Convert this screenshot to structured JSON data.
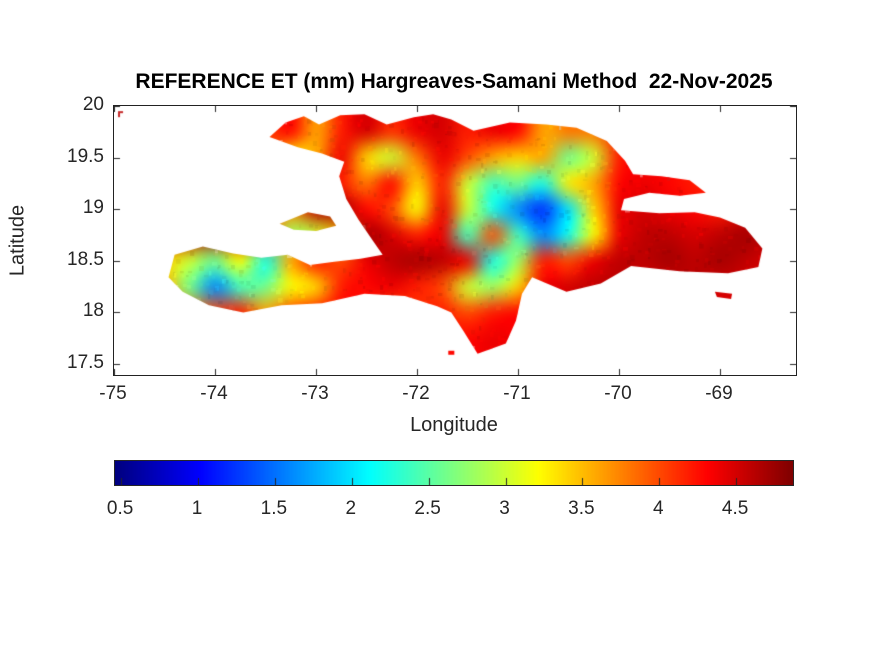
{
  "figure": {
    "title": "REFERENCE ET (mm) Hargreaves-Samani Method  22-Nov-2025",
    "background": "#ffffff",
    "text_color": "#262626",
    "axis_color": "#222222"
  },
  "axes": {
    "xlabel": "Longitude",
    "ylabel": "Latitude",
    "xlim": [
      -75,
      -68.247
    ],
    "ylim": [
      17.394,
      20
    ],
    "xticks": [
      -75,
      -74,
      -73,
      -72,
      -71,
      -70,
      -69
    ],
    "xtick_labels": [
      "-75",
      "-74",
      "-73",
      "-72",
      "-71",
      "-70",
      "-69"
    ],
    "yticks": [
      20,
      19.5,
      19,
      18.5,
      18,
      17.5
    ],
    "ytick_labels": [
      "20",
      "19.5",
      "19",
      "18.5",
      "18",
      "17.5"
    ],
    "box": true,
    "tick_dir": "in"
  },
  "colorbar": {
    "orientation": "horizontal",
    "ticks": [
      0.5,
      1,
      1.5,
      2,
      2.5,
      3,
      3.5,
      4,
      4.5
    ],
    "tick_labels": [
      "0.5",
      "1",
      "1.5",
      "2",
      "2.5",
      "3",
      "3.5",
      "4",
      "4.5"
    ],
    "limits": [
      0.46,
      4.87
    ]
  },
  "chart_data": {
    "type": "heatmap",
    "title": "REFERENCE ET (mm) Hargreaves-Samani Method  22-Nov-2025",
    "variable": "Reference evapotranspiration",
    "units": "mm",
    "method": "Hargreaves-Samani",
    "date": "22-Nov-2025",
    "region": "Hispaniola (Haiti and Dominican Republic)",
    "colormap": "jet",
    "clim": [
      0.46,
      4.87
    ],
    "stray_mark": {
      "lon": -74.96,
      "lat": 19.95,
      "color": "#c62828"
    },
    "grid": {
      "lon_start": -75.0,
      "lon_step": 0.25,
      "lat_start": 20.0,
      "lat_step": -0.25,
      "cols": 28,
      "rows": 11,
      "values": [
        [
          null,
          null,
          null,
          null,
          null,
          null,
          null,
          null,
          null,
          null,
          null,
          null,
          null,
          null,
          null,
          null,
          null,
          null,
          null,
          null,
          null,
          null,
          null,
          null,
          null,
          null,
          null,
          null
        ],
        [
          null,
          null,
          null,
          null,
          null,
          null,
          4.0,
          4.3,
          3.6,
          4.2,
          4.5,
          4.1,
          4.4,
          4.5,
          4.2,
          4.4,
          4.3,
          3.6,
          3.8,
          3.8,
          4.2,
          null,
          null,
          null,
          null,
          null,
          null,
          null
        ],
        [
          null,
          null,
          null,
          null,
          null,
          null,
          4.2,
          3.2,
          3.6,
          4.4,
          3.4,
          3.0,
          3.8,
          4.4,
          4.0,
          3.6,
          3.4,
          3.6,
          2.6,
          3.0,
          4.2,
          4.3,
          null,
          null,
          null,
          null,
          null,
          null
        ],
        [
          null,
          null,
          null,
          null,
          null,
          null,
          null,
          null,
          4.5,
          4.2,
          3.8,
          4.3,
          3.4,
          4.2,
          3.0,
          2.4,
          2.6,
          2.2,
          3.3,
          3.6,
          4.3,
          4.4,
          4.3,
          4.2,
          null,
          null,
          null,
          null
        ],
        [
          null,
          null,
          null,
          null,
          null,
          null,
          null,
          null,
          4.6,
          4.7,
          4.3,
          4.0,
          3.2,
          4.4,
          3.0,
          2.2,
          1.6,
          1.2,
          2.0,
          3.4,
          4.4,
          4.5,
          4.4,
          4.3,
          4.2,
          null,
          null,
          null
        ],
        [
          null,
          null,
          4.6,
          4.6,
          4.6,
          4.6,
          4.0,
          2.8,
          3.0,
          3.6,
          4.7,
          4.5,
          4.2,
          4.4,
          2.4,
          4.0,
          2.4,
          1.6,
          2.2,
          3.2,
          4.4,
          4.6,
          4.6,
          4.5,
          4.6,
          4.7,
          4.6,
          null
        ],
        [
          null,
          null,
          3.4,
          3.0,
          2.6,
          3.2,
          2.2,
          3.6,
          4.2,
          4.0,
          4.4,
          4.6,
          4.7,
          4.6,
          4.4,
          2.2,
          2.8,
          4.2,
          4.0,
          4.4,
          4.6,
          4.6,
          4.7,
          4.6,
          4.7,
          4.6,
          4.5,
          null
        ],
        [
          null,
          null,
          3.6,
          2.6,
          1.6,
          2.4,
          2.6,
          3.2,
          3.4,
          4.2,
          4.3,
          4.4,
          4.2,
          4.0,
          3.0,
          2.8,
          3.4,
          4.4,
          4.5,
          4.6,
          4.6,
          4.5,
          4.5,
          4.6,
          4.5,
          4.5,
          4.4,
          null
        ],
        [
          null,
          null,
          null,
          3.8,
          4.0,
          4.2,
          3.6,
          4.0,
          4.2,
          4.3,
          4.2,
          4.0,
          4.1,
          4.2,
          4.0,
          4.2,
          4.3,
          null,
          null,
          null,
          null,
          null,
          null,
          null,
          null,
          null,
          null,
          null
        ],
        [
          null,
          null,
          null,
          null,
          null,
          null,
          null,
          null,
          null,
          null,
          null,
          null,
          null,
          null,
          4.3,
          4.4,
          null,
          null,
          null,
          null,
          null,
          null,
          null,
          null,
          null,
          null,
          null,
          null
        ],
        [
          null,
          null,
          null,
          null,
          null,
          null,
          null,
          null,
          null,
          null,
          null,
          null,
          null,
          null,
          null,
          null,
          null,
          null,
          null,
          null,
          null,
          null,
          null,
          null,
          null,
          null,
          null,
          null
        ]
      ]
    },
    "coastline": {
      "main_island": [
        [
          -73.46,
          19.7
        ],
        [
          -73.3,
          19.84
        ],
        [
          -73.12,
          19.9
        ],
        [
          -72.97,
          19.82
        ],
        [
          -72.76,
          19.91
        ],
        [
          -72.52,
          19.92
        ],
        [
          -72.3,
          19.82
        ],
        [
          -72.03,
          19.89
        ],
        [
          -71.84,
          19.92
        ],
        [
          -71.66,
          19.87
        ],
        [
          -71.44,
          19.76
        ],
        [
          -71.08,
          19.84
        ],
        [
          -70.72,
          19.82
        ],
        [
          -70.42,
          19.79
        ],
        [
          -70.12,
          19.66
        ],
        [
          -69.94,
          19.47
        ],
        [
          -69.86,
          19.34
        ],
        [
          -69.58,
          19.32
        ],
        [
          -69.3,
          19.28
        ],
        [
          -69.14,
          19.16
        ],
        [
          -69.4,
          19.13
        ],
        [
          -69.7,
          19.16
        ],
        [
          -69.95,
          19.1
        ],
        [
          -69.98,
          18.99
        ],
        [
          -69.6,
          18.96
        ],
        [
          -69.25,
          18.97
        ],
        [
          -69.0,
          18.92
        ],
        [
          -68.75,
          18.82
        ],
        [
          -68.58,
          18.62
        ],
        [
          -68.62,
          18.44
        ],
        [
          -68.92,
          18.38
        ],
        [
          -69.4,
          18.4
        ],
        [
          -69.88,
          18.45
        ],
        [
          -70.18,
          18.28
        ],
        [
          -70.52,
          18.2
        ],
        [
          -70.86,
          18.34
        ],
        [
          -70.96,
          18.18
        ],
        [
          -71.02,
          17.92
        ],
        [
          -71.12,
          17.7
        ],
        [
          -71.4,
          17.6
        ],
        [
          -71.54,
          17.82
        ],
        [
          -71.66,
          18.0
        ],
        [
          -71.8,
          18.06
        ],
        [
          -72.12,
          18.16
        ],
        [
          -72.52,
          18.18
        ],
        [
          -72.94,
          18.09
        ],
        [
          -73.34,
          18.07
        ],
        [
          -73.72,
          18.0
        ],
        [
          -74.06,
          18.07
        ],
        [
          -74.32,
          18.2
        ],
        [
          -74.46,
          18.34
        ],
        [
          -74.4,
          18.56
        ],
        [
          -74.12,
          18.64
        ],
        [
          -73.82,
          18.57
        ],
        [
          -73.54,
          18.53
        ],
        [
          -73.28,
          18.56
        ],
        [
          -73.06,
          18.46
        ],
        [
          -72.82,
          18.49
        ],
        [
          -72.56,
          18.52
        ],
        [
          -72.34,
          18.56
        ],
        [
          -72.44,
          18.7
        ],
        [
          -72.58,
          18.9
        ],
        [
          -72.7,
          19.1
        ],
        [
          -72.77,
          19.32
        ],
        [
          -72.72,
          19.46
        ],
        [
          -72.94,
          19.54
        ],
        [
          -73.18,
          19.6
        ]
      ],
      "gonave_island": [
        [
          -73.36,
          18.86
        ],
        [
          -73.08,
          18.97
        ],
        [
          -72.86,
          18.93
        ],
        [
          -72.8,
          18.84
        ],
        [
          -73.0,
          18.79
        ],
        [
          -73.22,
          18.8
        ]
      ],
      "ile_a_vache": [
        [
          -73.26,
          18.14
        ],
        [
          -73.14,
          18.14
        ],
        [
          -73.12,
          18.1
        ],
        [
          -73.24,
          18.1
        ]
      ],
      "beata_island": [
        [
          -71.69,
          17.63
        ],
        [
          -71.63,
          17.63
        ],
        [
          -71.63,
          17.59
        ],
        [
          -71.69,
          17.59
        ]
      ],
      "saona_island": [
        [
          -69.05,
          18.2
        ],
        [
          -68.88,
          18.18
        ],
        [
          -68.89,
          18.13
        ],
        [
          -69.03,
          18.15
        ]
      ]
    }
  }
}
